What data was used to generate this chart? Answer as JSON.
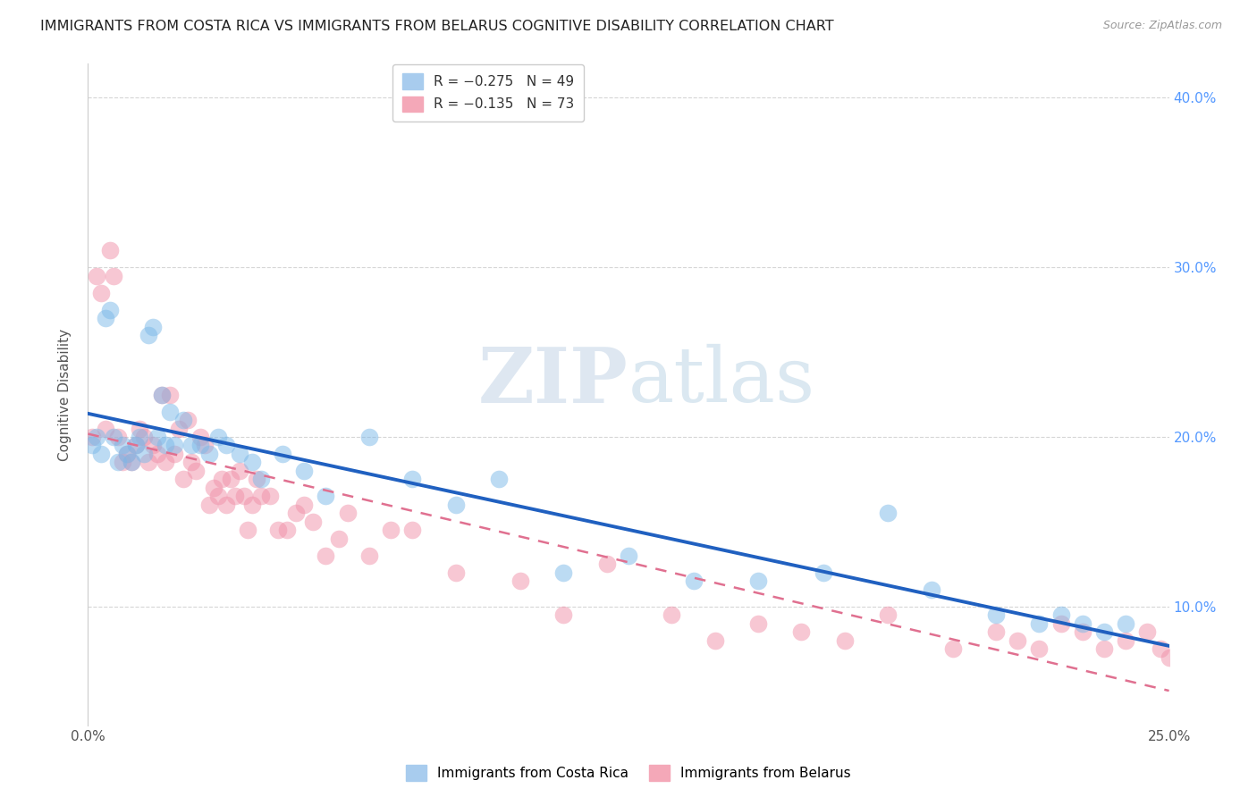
{
  "title": "IMMIGRANTS FROM COSTA RICA VS IMMIGRANTS FROM BELARUS COGNITIVE DISABILITY CORRELATION CHART",
  "source": "Source: ZipAtlas.com",
  "ylabel": "Cognitive Disability",
  "xlim": [
    0.0,
    0.25
  ],
  "ylim": [
    0.03,
    0.42
  ],
  "watermark_zip": "ZIP",
  "watermark_atlas": "atlas",
  "background_color": "#ffffff",
  "grid_color": "#cccccc",
  "cr_color": "#7bb8e8",
  "bl_color": "#f090a8",
  "cr_line_color": "#2060c0",
  "bl_line_color": "#e07090",
  "series_costa_rica_x": [
    0.001,
    0.002,
    0.003,
    0.004,
    0.005,
    0.006,
    0.007,
    0.008,
    0.009,
    0.01,
    0.011,
    0.012,
    0.013,
    0.014,
    0.015,
    0.016,
    0.017,
    0.018,
    0.019,
    0.02,
    0.022,
    0.024,
    0.026,
    0.028,
    0.03,
    0.032,
    0.035,
    0.038,
    0.04,
    0.045,
    0.05,
    0.055,
    0.065,
    0.075,
    0.085,
    0.095,
    0.11,
    0.125,
    0.14,
    0.155,
    0.17,
    0.185,
    0.195,
    0.21,
    0.22,
    0.225,
    0.23,
    0.235,
    0.24
  ],
  "series_costa_rica_y": [
    0.195,
    0.2,
    0.19,
    0.27,
    0.275,
    0.2,
    0.185,
    0.195,
    0.19,
    0.185,
    0.195,
    0.2,
    0.19,
    0.26,
    0.265,
    0.2,
    0.225,
    0.195,
    0.215,
    0.195,
    0.21,
    0.195,
    0.195,
    0.19,
    0.2,
    0.195,
    0.19,
    0.185,
    0.175,
    0.19,
    0.18,
    0.165,
    0.2,
    0.175,
    0.16,
    0.175,
    0.12,
    0.13,
    0.115,
    0.115,
    0.12,
    0.155,
    0.11,
    0.095,
    0.09,
    0.095,
    0.09,
    0.085,
    0.09
  ],
  "series_belarus_x": [
    0.001,
    0.002,
    0.003,
    0.004,
    0.005,
    0.006,
    0.007,
    0.008,
    0.009,
    0.01,
    0.011,
    0.012,
    0.013,
    0.014,
    0.015,
    0.016,
    0.017,
    0.018,
    0.019,
    0.02,
    0.021,
    0.022,
    0.023,
    0.024,
    0.025,
    0.026,
    0.027,
    0.028,
    0.029,
    0.03,
    0.031,
    0.032,
    0.033,
    0.034,
    0.035,
    0.036,
    0.037,
    0.038,
    0.039,
    0.04,
    0.042,
    0.044,
    0.046,
    0.048,
    0.05,
    0.052,
    0.055,
    0.058,
    0.06,
    0.065,
    0.07,
    0.075,
    0.085,
    0.1,
    0.11,
    0.12,
    0.135,
    0.145,
    0.155,
    0.165,
    0.175,
    0.185,
    0.2,
    0.21,
    0.215,
    0.22,
    0.225,
    0.23,
    0.235,
    0.24,
    0.245,
    0.248,
    0.25
  ],
  "series_belarus_y": [
    0.2,
    0.295,
    0.285,
    0.205,
    0.31,
    0.295,
    0.2,
    0.185,
    0.19,
    0.185,
    0.195,
    0.205,
    0.2,
    0.185,
    0.195,
    0.19,
    0.225,
    0.185,
    0.225,
    0.19,
    0.205,
    0.175,
    0.21,
    0.185,
    0.18,
    0.2,
    0.195,
    0.16,
    0.17,
    0.165,
    0.175,
    0.16,
    0.175,
    0.165,
    0.18,
    0.165,
    0.145,
    0.16,
    0.175,
    0.165,
    0.165,
    0.145,
    0.145,
    0.155,
    0.16,
    0.15,
    0.13,
    0.14,
    0.155,
    0.13,
    0.145,
    0.145,
    0.12,
    0.115,
    0.095,
    0.125,
    0.095,
    0.08,
    0.09,
    0.085,
    0.08,
    0.095,
    0.075,
    0.085,
    0.08,
    0.075,
    0.09,
    0.085,
    0.075,
    0.08,
    0.085,
    0.075,
    0.07
  ]
}
